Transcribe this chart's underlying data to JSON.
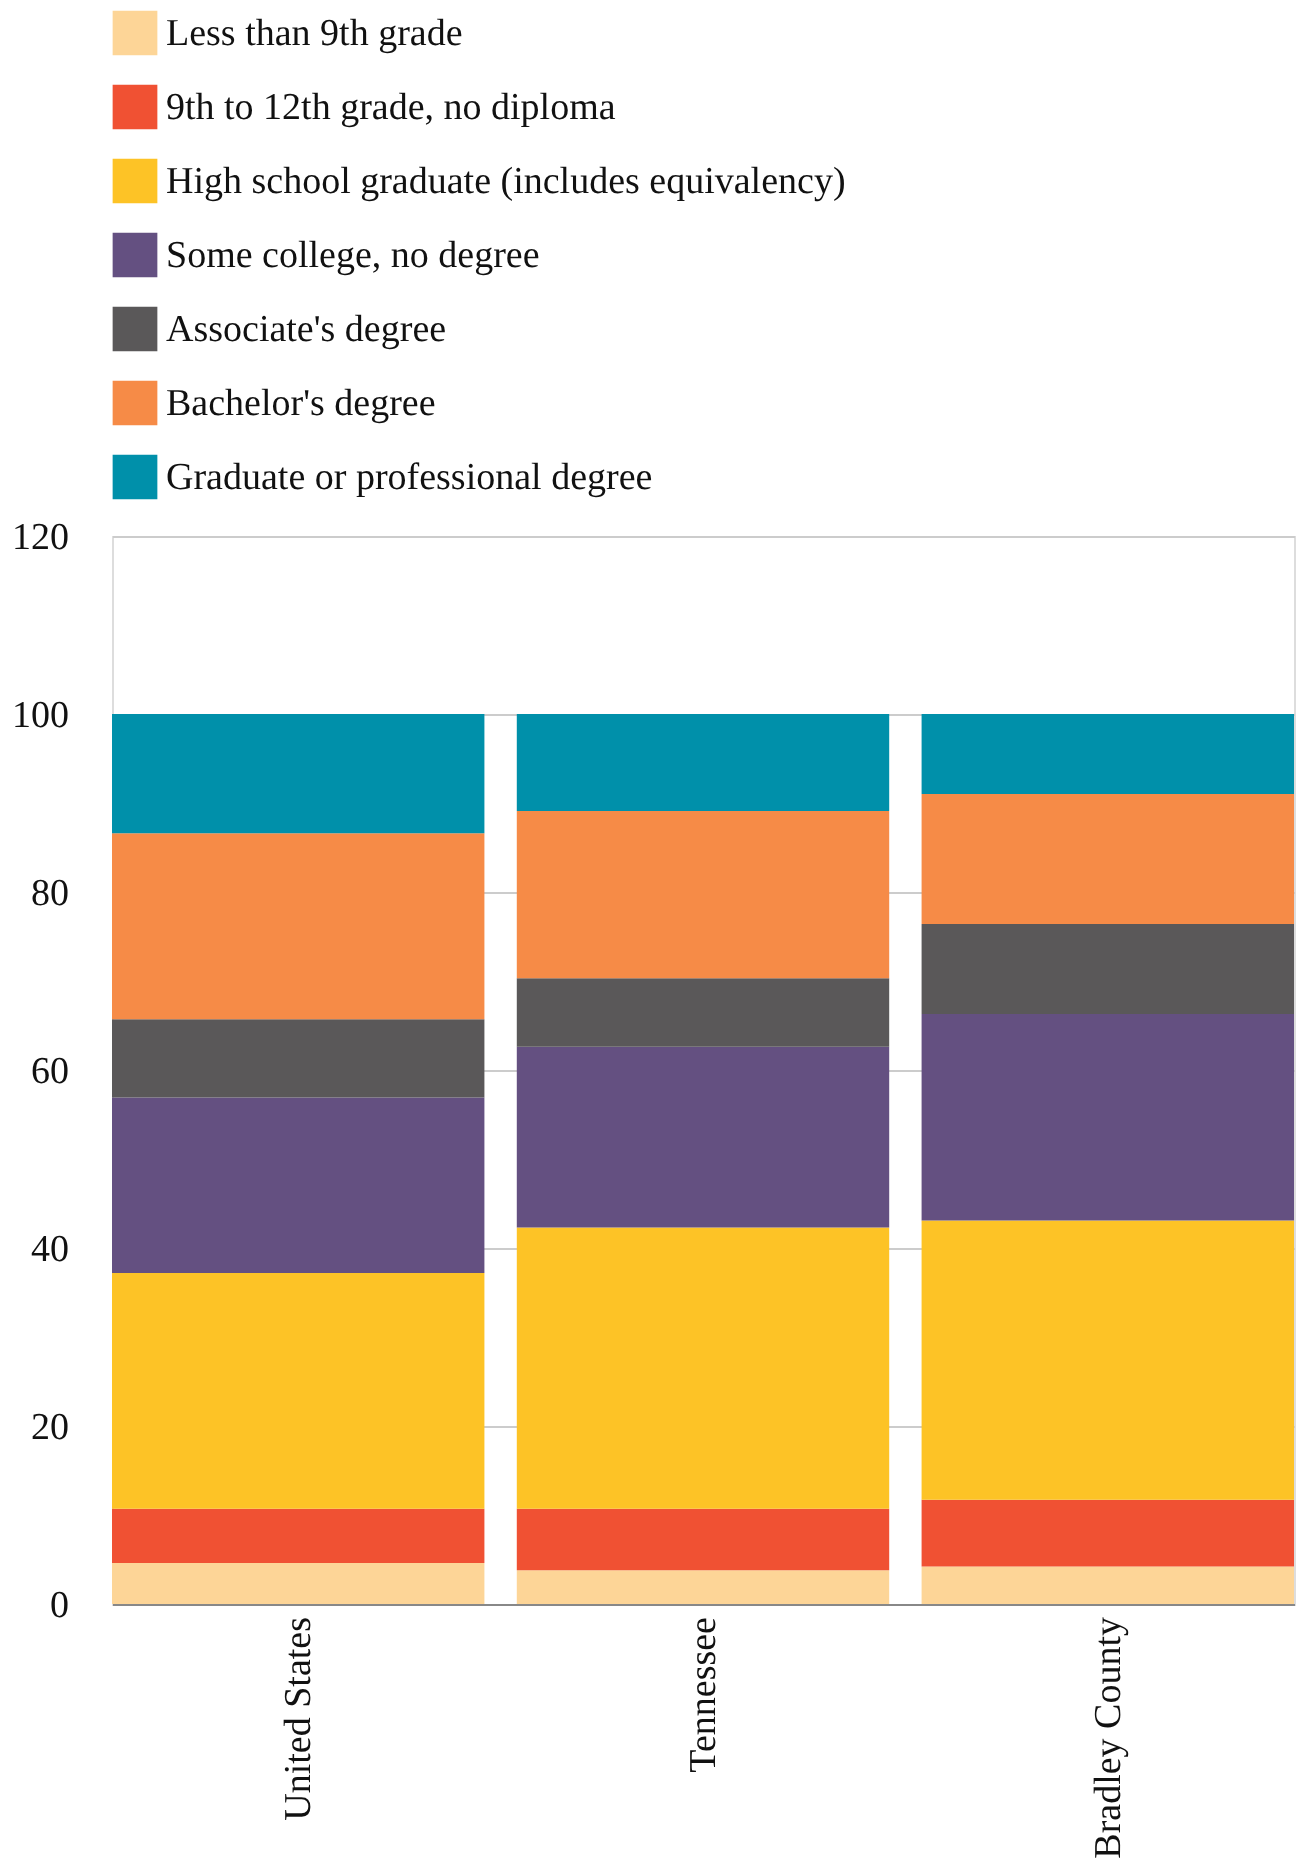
{
  "chart_data": {
    "type": "bar",
    "stacked": true,
    "categories": [
      "United States",
      "Tennessee",
      "Bradley County"
    ],
    "series": [
      {
        "name": "Less than 9th grade",
        "color": "#fdd597",
        "values": [
          4.6,
          3.8,
          4.2
        ]
      },
      {
        "name": "9th to 12th grade, no diploma",
        "color": "#f05133",
        "values": [
          6.1,
          6.9,
          7.5
        ]
      },
      {
        "name": "High school graduate (includes equivalency)",
        "color": "#fdc326",
        "values": [
          26.5,
          31.6,
          31.4
        ]
      },
      {
        "name": "Some college, no degree",
        "color": "#645081",
        "values": [
          19.7,
          20.3,
          23.2
        ]
      },
      {
        "name": "Associate's degree",
        "color": "#5a5859",
        "values": [
          8.8,
          7.7,
          10.1
        ]
      },
      {
        "name": "Bachelor's degree",
        "color": "#f68b47",
        "values": [
          20.9,
          18.8,
          14.6
        ]
      },
      {
        "name": "Graduate or professional degree",
        "color": "#0090aa",
        "values": [
          13.4,
          10.9,
          9.0
        ]
      }
    ],
    "ylim": [
      0,
      120
    ],
    "yticks": [
      0,
      20,
      40,
      60,
      80,
      100,
      120
    ],
    "grid": "y",
    "legend": "top"
  }
}
